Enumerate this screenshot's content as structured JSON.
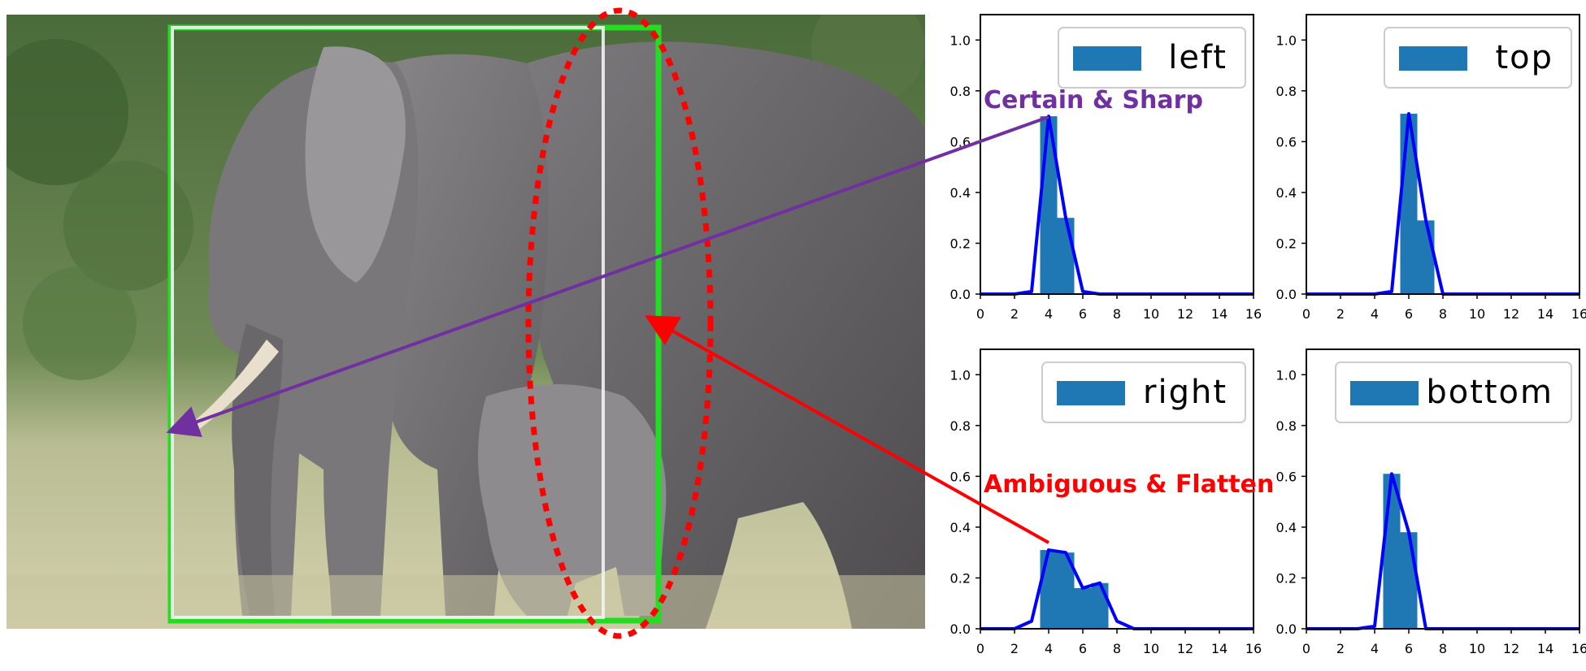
{
  "annotations": {
    "certain": "Certain & Sharp",
    "ambiguous": "Ambiguous & Flatten"
  },
  "colors": {
    "bar": "#1f77b4",
    "curve": "#0000ff",
    "gt_box": "#22dd22",
    "pred_box": "#f2f2f2",
    "ellipse": "#ff0000",
    "certain_arrow": "#7030a0",
    "ambiguous_arrow": "#ff0000"
  },
  "photo": {
    "description_icon": "elephants-photo"
  },
  "chart_data": [
    {
      "type": "bar",
      "legend": "left",
      "legend_position": "top-right",
      "xlim": [
        0,
        16
      ],
      "ylim": [
        0,
        1.1
      ],
      "xticks": [
        "0",
        "2",
        "4",
        "6",
        "8",
        "10",
        "12",
        "14",
        "16"
      ],
      "yticks": [
        "0.0",
        "0.2",
        "0.4",
        "0.6",
        "0.8",
        "1.0"
      ],
      "bars": [
        {
          "x": 4,
          "y": 0.7
        },
        {
          "x": 5,
          "y": 0.3
        }
      ],
      "curve": {
        "x": [
          0,
          1,
          2,
          3,
          4,
          5,
          6,
          7,
          8,
          9,
          10,
          11,
          12,
          13,
          14,
          15,
          16
        ],
        "y": [
          0,
          0,
          0,
          0.01,
          0.7,
          0.3,
          0.01,
          0,
          0,
          0,
          0,
          0,
          0,
          0,
          0,
          0,
          0
        ]
      }
    },
    {
      "type": "bar",
      "legend": "top",
      "legend_position": "top-right",
      "xlim": [
        0,
        16
      ],
      "ylim": [
        0,
        1.1
      ],
      "xticks": [
        "0",
        "2",
        "4",
        "6",
        "8",
        "10",
        "12",
        "14",
        "16"
      ],
      "yticks": [
        "0.0",
        "0.2",
        "0.4",
        "0.6",
        "0.8",
        "1.0"
      ],
      "bars": [
        {
          "x": 6,
          "y": 0.71
        },
        {
          "x": 7,
          "y": 0.29
        }
      ],
      "curve": {
        "x": [
          0,
          1,
          2,
          3,
          4,
          5,
          6,
          7,
          8,
          9,
          10,
          11,
          12,
          13,
          14,
          15,
          16
        ],
        "y": [
          0,
          0,
          0,
          0,
          0,
          0.01,
          0.71,
          0.29,
          0.0,
          0,
          0,
          0,
          0,
          0,
          0,
          0,
          0
        ]
      }
    },
    {
      "type": "bar",
      "legend": "right",
      "legend_position": "top-right",
      "xlim": [
        0,
        16
      ],
      "ylim": [
        0,
        1.1
      ],
      "xticks": [
        "0",
        "2",
        "4",
        "6",
        "8",
        "10",
        "12",
        "14",
        "16"
      ],
      "yticks": [
        "0.0",
        "0.2",
        "0.4",
        "0.6",
        "0.8",
        "1.0"
      ],
      "bars": [
        {
          "x": 4,
          "y": 0.31
        },
        {
          "x": 5,
          "y": 0.3
        },
        {
          "x": 6,
          "y": 0.16
        },
        {
          "x": 7,
          "y": 0.18
        }
      ],
      "curve": {
        "x": [
          0,
          1,
          2,
          3,
          4,
          5,
          6,
          7,
          8,
          9,
          10,
          11,
          12,
          13,
          14,
          15,
          16
        ],
        "y": [
          0,
          0,
          0,
          0.03,
          0.31,
          0.3,
          0.16,
          0.18,
          0.03,
          0,
          0,
          0,
          0,
          0,
          0,
          0,
          0
        ]
      }
    },
    {
      "type": "bar",
      "legend": "bottom",
      "legend_position": "top-right",
      "xlim": [
        0,
        16
      ],
      "ylim": [
        0,
        1.1
      ],
      "xticks": [
        "0",
        "2",
        "4",
        "6",
        "8",
        "10",
        "12",
        "14",
        "16"
      ],
      "yticks": [
        "0.0",
        "0.2",
        "0.4",
        "0.6",
        "0.8",
        "1.0"
      ],
      "bars": [
        {
          "x": 5,
          "y": 0.61
        },
        {
          "x": 6,
          "y": 0.38
        }
      ],
      "curve": {
        "x": [
          0,
          1,
          2,
          3,
          4,
          5,
          6,
          7,
          8,
          9,
          10,
          11,
          12,
          13,
          14,
          15,
          16
        ],
        "y": [
          0,
          0,
          0,
          0,
          0.01,
          0.61,
          0.38,
          0.0,
          0,
          0,
          0,
          0,
          0,
          0,
          0,
          0,
          0
        ]
      }
    }
  ]
}
